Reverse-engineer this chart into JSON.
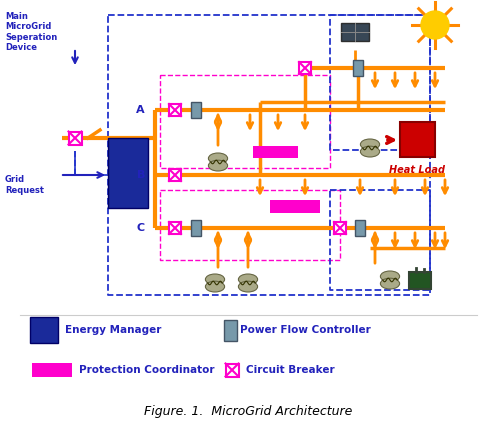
{
  "title": "Figure. 1.  MicroGrid Architecture",
  "bg": "#ffffff",
  "orange": "#FF8C00",
  "blue_dark": "#2222bb",
  "blue_dashed": "#2233cc",
  "magenta": "#ff00cc",
  "em_color": "#1a2a9a",
  "pfc_color": "#7799aa",
  "heat_color": "#cc0000",
  "labels": {
    "main_sep": "Main\nMicroGrid\nSeperation\nDevice",
    "grid_req": "Grid\nRequest",
    "heat_load": "Heat Load",
    "em": "Energy Manager",
    "pfc": "Power Flow Controller",
    "prot": "Protection Coordinator",
    "cb": "Circuit Breaker",
    "fig": "Figure. 1.  MicroGrid Architecture"
  },
  "figsize": [
    4.97,
    4.32
  ],
  "dpi": 100
}
